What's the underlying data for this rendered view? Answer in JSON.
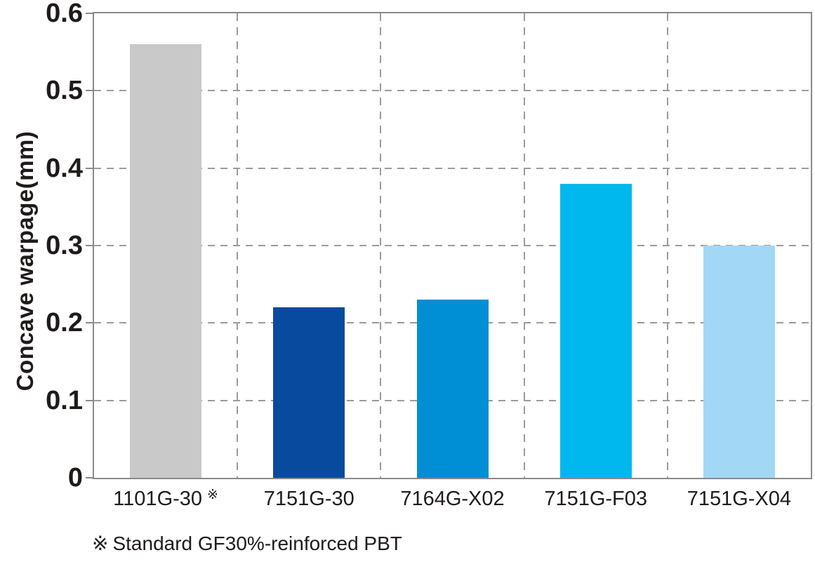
{
  "chart_data": {
    "type": "bar",
    "title": "",
    "xlabel": "",
    "ylabel": "Concave warpage(mm)",
    "categories": [
      "1101G-30",
      "7151G-30",
      "7164G-X02",
      "7151G-F03",
      "7151G-X04"
    ],
    "category_markers": [
      "※",
      "",
      "",
      "",
      ""
    ],
    "values": [
      0.56,
      0.22,
      0.23,
      0.38,
      0.3
    ],
    "bar_colors": [
      "#c9c9c9",
      "#084a9e",
      "#008fd4",
      "#00b7ee",
      "#a2d8f5"
    ],
    "ylim": [
      0,
      0.6
    ],
    "ytick_values": [
      0.6,
      0.5,
      0.4,
      0.3,
      0.2,
      0.1,
      0
    ],
    "ytick_labels": [
      "0.6",
      "0.5",
      "0.4",
      "0.3",
      "0.2",
      "0.1",
      "0"
    ],
    "grid": "horizontal dashed gridlines at each 0.1; vertical dashed separators between categories",
    "legend": "none"
  },
  "footnote": {
    "marker": "※",
    "text": "Standard GF30%-reinforced PBT"
  },
  "colors": {
    "axis_border": "#8a8a8a",
    "gridline": "#9b9b9b",
    "text": "#1f1b1a",
    "background": "#ffffff"
  }
}
